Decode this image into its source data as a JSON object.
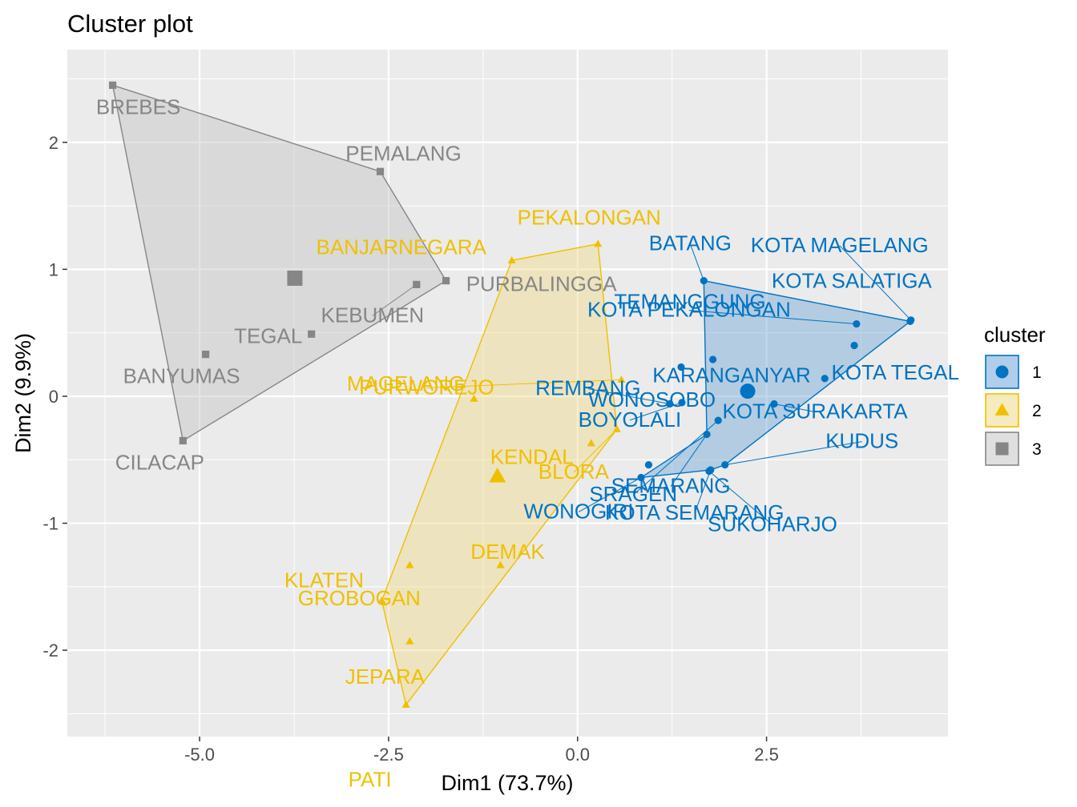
{
  "chart_data": {
    "type": "scatter",
    "title": "Cluster plot",
    "xlabel": "Dim1 (73.7%)",
    "ylabel": "Dim2 (9.9%)",
    "xlim": [
      -6.75,
      4.9
    ],
    "ylim": [
      -2.68,
      2.73
    ],
    "x_ticks": [
      -5.0,
      -2.5,
      0.0,
      2.5
    ],
    "x_tick_labels": [
      "-5.0",
      "-2.5",
      "0.0",
      "2.5"
    ],
    "y_ticks": [
      -2,
      -1,
      0,
      1,
      2
    ],
    "y_tick_labels": [
      "-2",
      "-1",
      "0",
      "1",
      "2"
    ],
    "grid": true,
    "legend": {
      "title": "cluster",
      "position": "right"
    },
    "clusters": [
      {
        "name": "1",
        "color": "#0073C2",
        "fill": "#6FA6D8",
        "shape": "circle",
        "centroid": [
          2.25,
          0.04
        ],
        "hull": [
          "KOTA SALATIGA",
          "KUDUS",
          "KOTA SEMARANG",
          "WONOGIRI",
          "SEMARANG",
          "BATANG"
        ],
        "points": [
          {
            "name": "BATANG",
            "x": 1.67,
            "y": 0.91
          },
          {
            "name": "KOTA MAGELANG",
            "x": 4.41,
            "y": 0.6
          },
          {
            "name": "KOTA SALATIGA",
            "x": 4.4,
            "y": 0.59
          },
          {
            "name": "KOTA PEKALONGAN",
            "x": 3.69,
            "y": 0.57
          },
          {
            "name": "TEMANGGUNG",
            "x": 3.66,
            "y": 0.4
          },
          {
            "name": "WONOSOBO",
            "x": 1.79,
            "y": 0.29
          },
          {
            "name": "KOTA TEGAL",
            "x": 3.27,
            "y": 0.14
          },
          {
            "name": "KARANGANYAR",
            "x": 1.37,
            "y": 0.23
          },
          {
            "name": "KOTA SURAKARTA",
            "x": 2.6,
            "y": -0.06
          },
          {
            "name": "REMBANG",
            "x": 1.22,
            "y": -0.06
          },
          {
            "name": "BOYOLALI",
            "x": 1.38,
            "y": -0.05
          },
          {
            "name": "SRAGEN",
            "x": 1.86,
            "y": -0.19
          },
          {
            "name": "KUDUS",
            "x": 1.95,
            "y": -0.54
          },
          {
            "name": "SEMARANG",
            "x": 1.71,
            "y": -0.3
          },
          {
            "name": "KOTA SEMARANG",
            "x": 1.76,
            "y": -0.58
          },
          {
            "name": "SUKOHARJO",
            "x": 1.74,
            "y": -0.59
          },
          {
            "name": "WONOGIRI",
            "x": 0.84,
            "y": -0.64
          },
          {
            "name": "",
            "x": 0.94,
            "y": -0.54
          }
        ]
      },
      {
        "name": "2",
        "color": "#EFC000",
        "fill": "#EFD98A",
        "shape": "triangle",
        "centroid": [
          -1.06,
          -0.63
        ],
        "hull": [
          "PEKALONGAN",
          "BANJARNEGARA",
          "KLATEN",
          "PATI",
          "BLORA"
        ],
        "points": [
          {
            "name": "PEKALONGAN",
            "x": 0.27,
            "y": 1.2
          },
          {
            "name": "BANJARNEGARA",
            "x": -0.87,
            "y": 1.07
          },
          {
            "name": "PURWOREJO",
            "x": 0.58,
            "y": 0.13
          },
          {
            "name": "MAGELANG",
            "x": -1.37,
            "y": -0.02
          },
          {
            "name": "KENDAL",
            "x": 0.18,
            "y": -0.37
          },
          {
            "name": "BLORA",
            "x": 0.52,
            "y": -0.26
          },
          {
            "name": "DEMAK",
            "x": -1.02,
            "y": -1.33
          },
          {
            "name": "KLATEN",
            "x": -2.59,
            "y": -1.61
          },
          {
            "name": "GROBOGAN",
            "x": -2.22,
            "y": -1.33
          },
          {
            "name": "JEPARA",
            "x": -2.22,
            "y": -1.93
          },
          {
            "name": "PATI",
            "x": -2.27,
            "y": -2.43
          }
        ]
      },
      {
        "name": "3",
        "color": "#868686",
        "fill": "#C4C4C4",
        "shape": "square",
        "centroid": [
          -3.74,
          0.93
        ],
        "hull": [
          "BREBES",
          "PEMALANG",
          "PURBALINGGA",
          "CILACAP"
        ],
        "points": [
          {
            "name": "BREBES",
            "x": -6.15,
            "y": 2.45
          },
          {
            "name": "PEMALANG",
            "x": -2.61,
            "y": 1.77
          },
          {
            "name": "PURBALINGGA",
            "x": -1.74,
            "y": 0.91
          },
          {
            "name": "KEBUMEN",
            "x": -2.13,
            "y": 0.88
          },
          {
            "name": "TEGAL",
            "x": -3.52,
            "y": 0.49
          },
          {
            "name": "BANYUMAS",
            "x": -4.92,
            "y": 0.33
          },
          {
            "name": "CILACAP",
            "x": -5.22,
            "y": -0.35
          }
        ]
      }
    ]
  }
}
